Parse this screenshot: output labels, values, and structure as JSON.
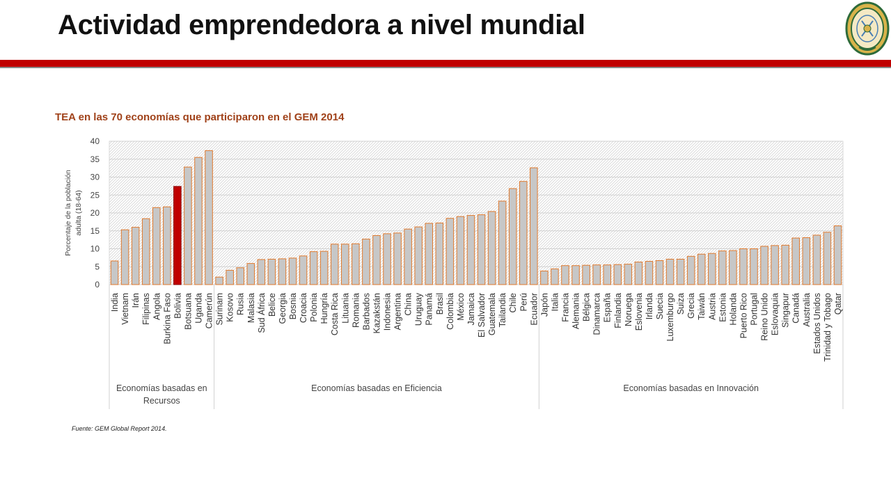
{
  "slide": {
    "title": "Actividad emprendedora a nivel mundial",
    "source": "Fuente: GEM Global Report 2014."
  },
  "colors": {
    "accent_bar": "#c00000",
    "bar_fill": "#c7c7c7",
    "bar_stroke": "#e07a2e",
    "highlight_fill": "#c00000",
    "chart_title_color": "#a0421a"
  },
  "logo": {
    "icon": "university-seal-icon"
  },
  "chart_data": {
    "type": "bar",
    "title": "TEA en las 70 economías que participaron en el GEM 2014",
    "ylabel": "Porcentaje de la población adulta (18-64)",
    "xlabel": "",
    "ylim": [
      0,
      40
    ],
    "yticks": [
      0,
      5,
      10,
      15,
      20,
      25,
      30,
      35,
      40
    ],
    "grid": true,
    "highlight": "Bolivia",
    "categories": [
      "India",
      "Vietnam",
      "Irán",
      "Filipinas",
      "Angola",
      "Burkina Faso",
      "Bolivia",
      "Botsuana",
      "Uganda",
      "Camerún",
      "Surinam",
      "Kosovo",
      "Rusia",
      "Malasia",
      "Sud África",
      "Belice",
      "Georgia",
      "Bosnia",
      "Croacia",
      "Polonia",
      "Hungría",
      "Costa Rica",
      "Lituania",
      "Romania",
      "Barbados",
      "Kazakstán",
      "Indonesia",
      "Argentina",
      "China",
      "Uruguay",
      "Panamá",
      "Brasil",
      "Colombia",
      "México",
      "Jamaica",
      "El Salvador",
      "Guatemala",
      "Tailandia",
      "Chile",
      "Perú",
      "Ecuador",
      "Japón",
      "Italia",
      "Francia",
      "Alemania",
      "Bélgica",
      "Dinamarca",
      "España",
      "Finlandia",
      "Noruega",
      "Eslovenia",
      "Irlanda",
      "Suecia",
      "Luxemburgo",
      "Suiza",
      "Grecia",
      "Taiwán",
      "Austria",
      "Estonia",
      "Holanda",
      "Puerto Rico",
      "Portugal",
      "Reino Unido",
      "Eslovaquia",
      "Singapur",
      "Canadá",
      "Australia",
      "Estados Unidos",
      "Trinidad y Tobago",
      "Qatar"
    ],
    "values": [
      6.6,
      15.3,
      16.0,
      18.4,
      21.5,
      21.7,
      27.4,
      32.8,
      35.5,
      37.4,
      2.1,
      4.0,
      4.7,
      5.9,
      7.0,
      7.1,
      7.2,
      7.4,
      8.0,
      9.2,
      9.3,
      11.3,
      11.3,
      11.4,
      12.7,
      13.7,
      14.2,
      14.4,
      15.5,
      16.1,
      17.1,
      17.2,
      18.5,
      19.0,
      19.3,
      19.5,
      20.4,
      23.3,
      26.8,
      28.8,
      32.6,
      3.8,
      4.4,
      5.3,
      5.3,
      5.4,
      5.5,
      5.5,
      5.6,
      5.7,
      6.3,
      6.5,
      6.7,
      7.1,
      7.1,
      7.9,
      8.5,
      8.7,
      9.4,
      9.5,
      10.0,
      10.0,
      10.7,
      10.9,
      11.0,
      13.0,
      13.1,
      13.8,
      14.6,
      16.4
    ],
    "groups": [
      {
        "label": "Economías basadas en Recursos",
        "start": 0,
        "end": 9
      },
      {
        "label": "Economías basadas en Eficiencia",
        "start": 10,
        "end": 40
      },
      {
        "label": "Economías basadas en Innovación",
        "start": 41,
        "end": 69
      }
    ]
  }
}
